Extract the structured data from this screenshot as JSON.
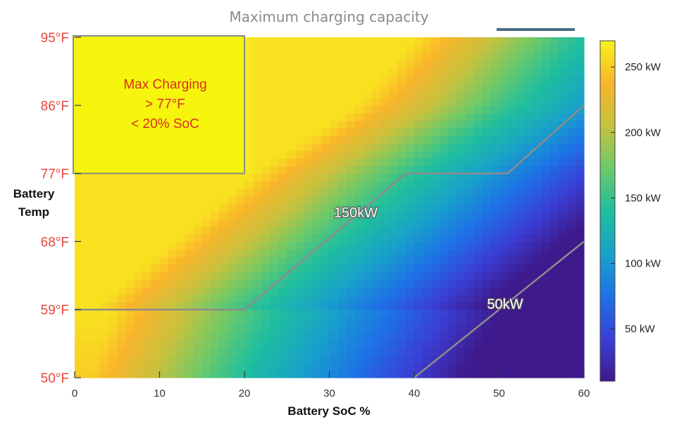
{
  "chart_data": {
    "type": "heatmap",
    "title": "Maximum charging capacity",
    "xlabel": "Battery SoC %",
    "ylabel_lines": [
      "Battery",
      "Temp"
    ],
    "x_ticks": [
      "0",
      "10",
      "20",
      "30",
      "40",
      "50",
      "60"
    ],
    "x_range": [
      0,
      60
    ],
    "y_ticks": [
      "50°F",
      "59°F",
      "68°F",
      "77°F",
      "86°F",
      "95°F"
    ],
    "y_range": [
      50,
      95
    ],
    "colorbar": {
      "ticks": [
        "50 kW",
        "100 kW",
        "150 kW",
        "200 kW",
        "250 kW"
      ],
      "range": [
        10,
        270
      ],
      "colors": [
        "#3e1a8c",
        "#3a3fd6",
        "#1d73e6",
        "#18a2c9",
        "#1fbe9f",
        "#6cc96a",
        "#c6c23e",
        "#f9b52b",
        "#f8f21c"
      ]
    },
    "contours": [
      {
        "label": "150kW",
        "points": [
          [
            0,
            59
          ],
          [
            20,
            59
          ],
          [
            39,
            77
          ],
          [
            51,
            77
          ],
          [
            60,
            86
          ]
        ]
      },
      {
        "label": "50kW",
        "points": [
          [
            40,
            50
          ],
          [
            60,
            68
          ]
        ]
      }
    ],
    "annotation": {
      "lines": [
        "Max Charging",
        "> 77°F",
        "< 20% SoC"
      ],
      "region": {
        "x": [
          0,
          20
        ],
        "y": [
          77,
          95
        ]
      }
    }
  }
}
